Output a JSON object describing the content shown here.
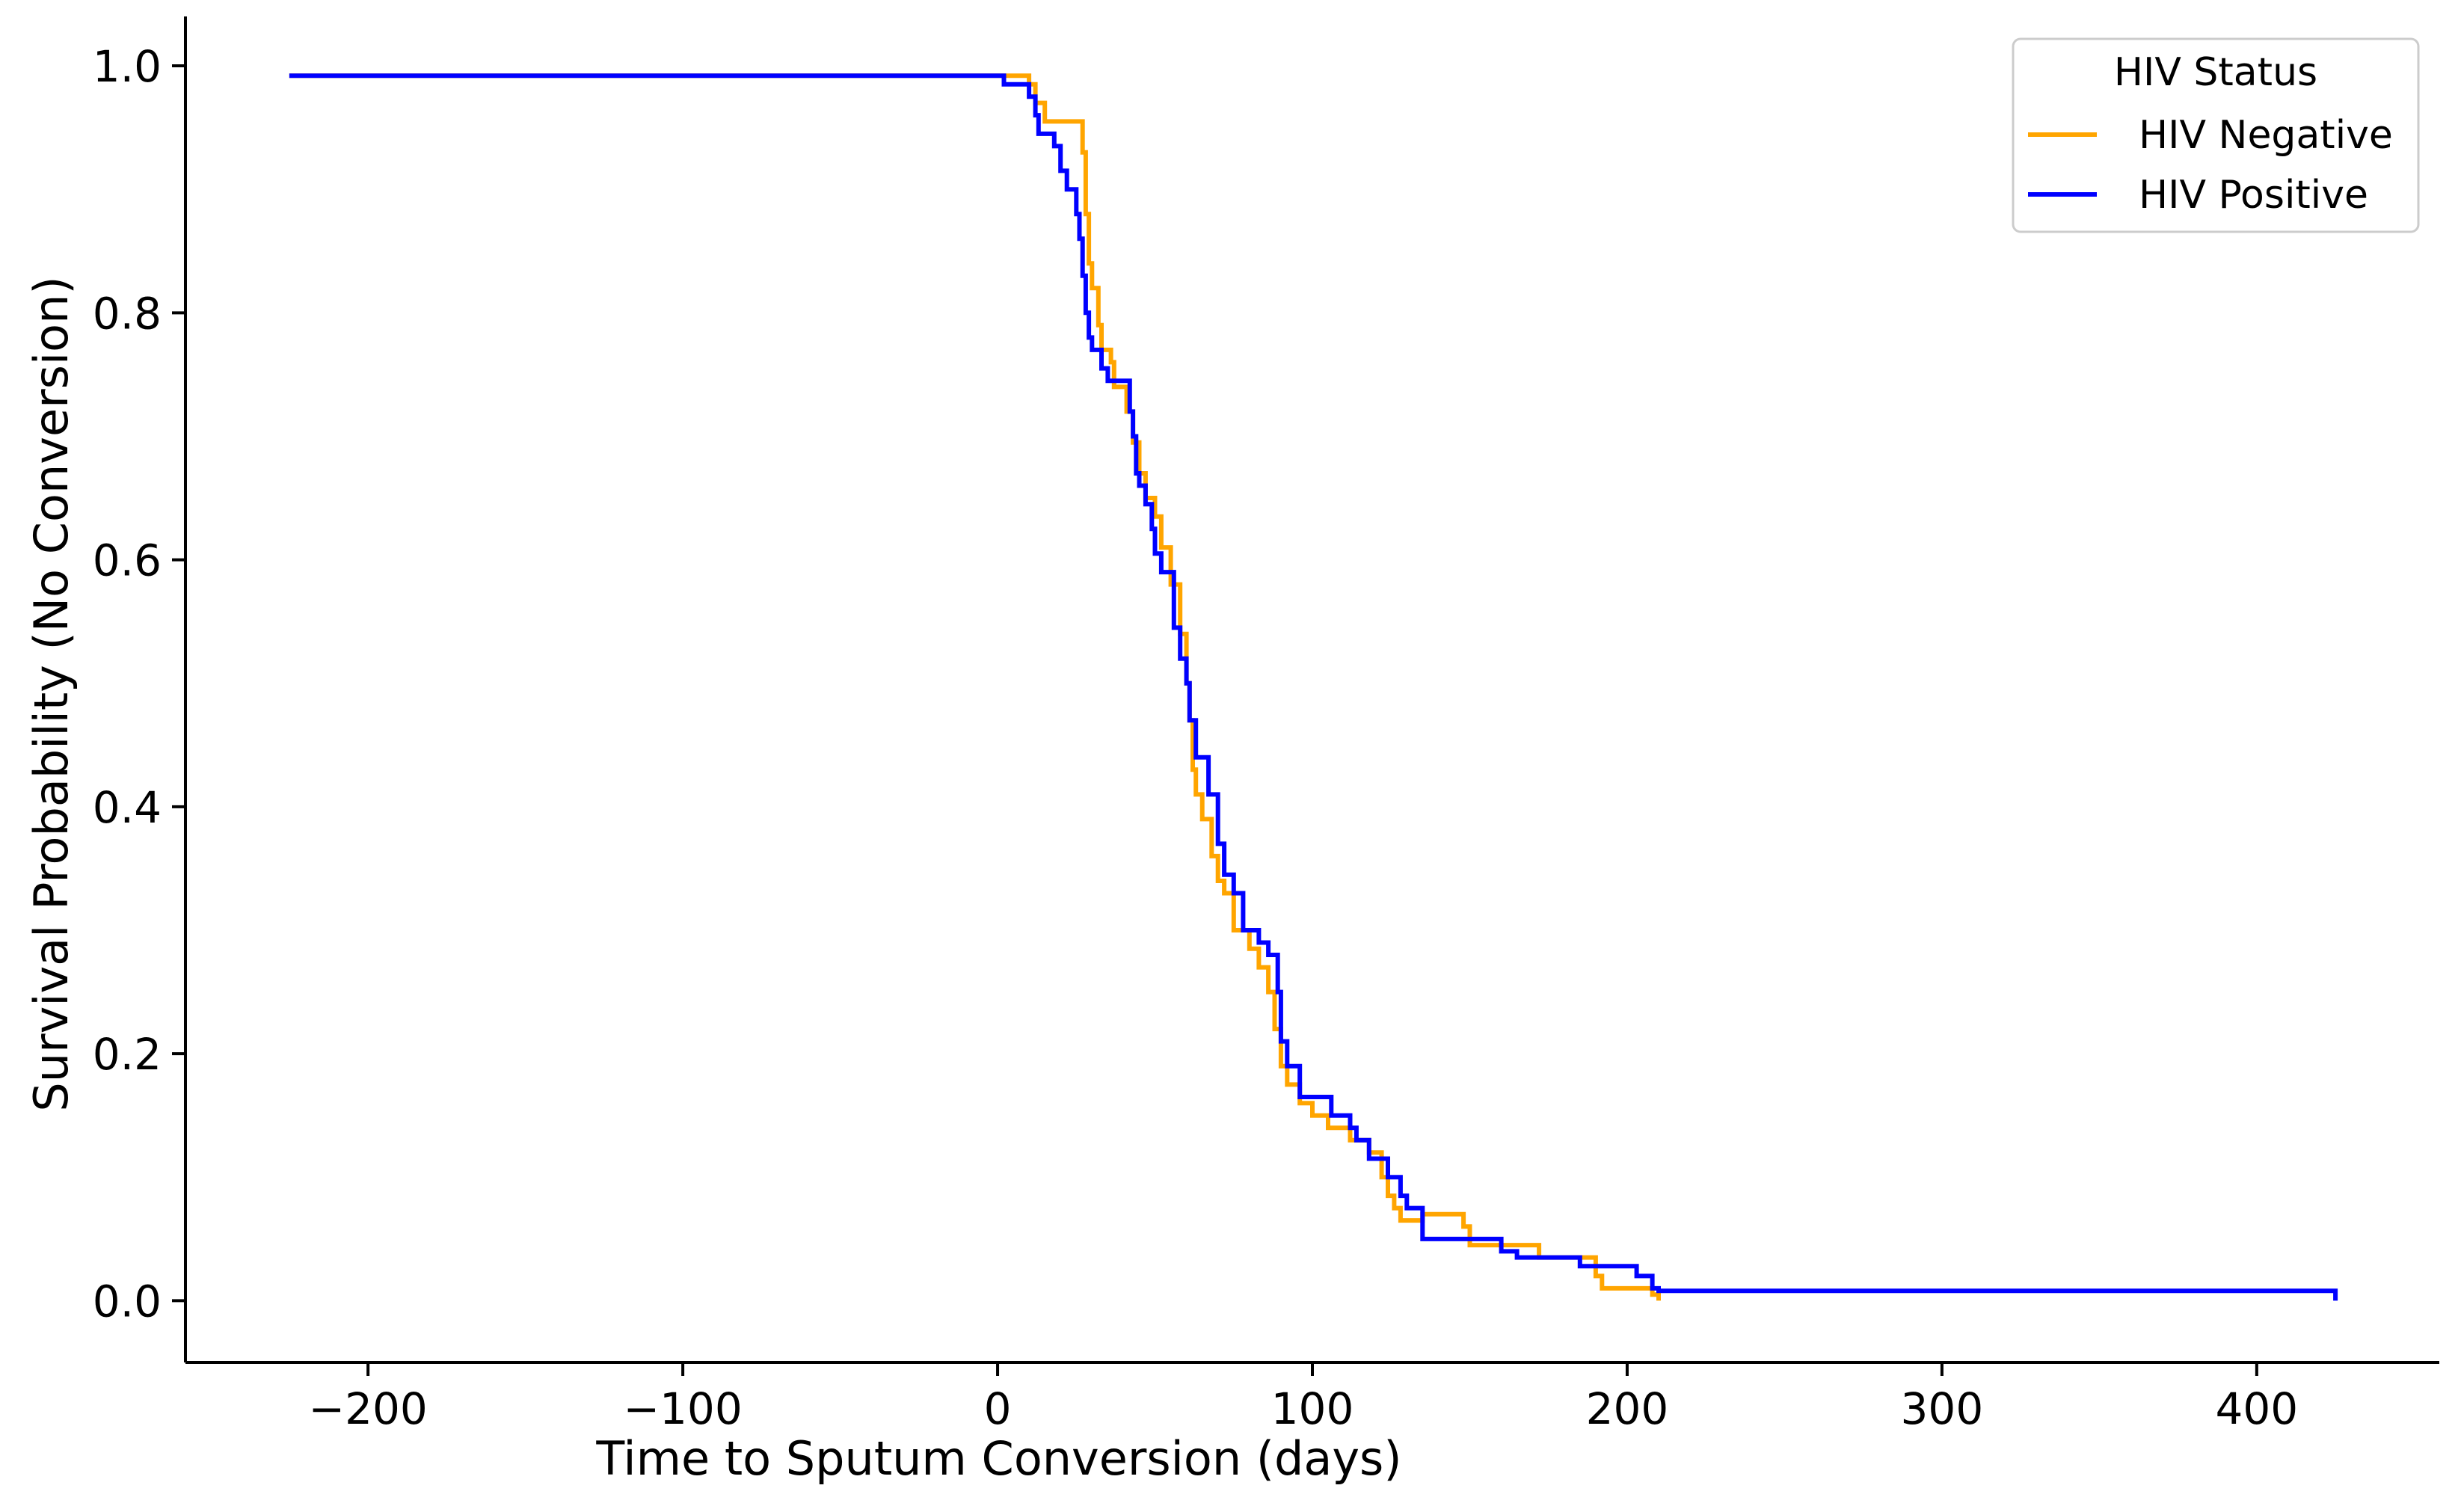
{
  "chart_data": {
    "type": "line",
    "step": true,
    "title": "",
    "xlabel": "Time to Sputum Conversion (days)",
    "ylabel": "Survival Probability (No Conversion)",
    "xlim": [
      -258,
      458
    ],
    "ylim": [
      -0.05,
      1.04
    ],
    "xticks": [
      -200,
      -100,
      0,
      100,
      200,
      300,
      400
    ],
    "xtick_labels": [
      "−200",
      "−100",
      "0",
      "100",
      "200",
      "300",
      "400"
    ],
    "yticks": [
      0.0,
      0.2,
      0.4,
      0.6,
      0.8,
      1.0
    ],
    "ytick_labels": [
      "0.0",
      "0.2",
      "0.4",
      "0.6",
      "0.8",
      "1.0"
    ],
    "grid": false,
    "legend": {
      "title": "HIV Status",
      "position": "top-right"
    },
    "series": [
      {
        "name": "HIV Negative",
        "color": "#FFA500",
        "points": [
          [
            -225,
            0.992
          ],
          [
            10,
            0.992
          ],
          [
            10,
            0.985
          ],
          [
            12,
            0.985
          ],
          [
            12,
            0.97
          ],
          [
            15,
            0.97
          ],
          [
            15,
            0.955
          ],
          [
            27,
            0.955
          ],
          [
            27,
            0.93
          ],
          [
            28,
            0.93
          ],
          [
            28,
            0.88
          ],
          [
            29,
            0.88
          ],
          [
            29,
            0.84
          ],
          [
            30,
            0.84
          ],
          [
            30,
            0.82
          ],
          [
            32,
            0.82
          ],
          [
            32,
            0.79
          ],
          [
            33,
            0.79
          ],
          [
            33,
            0.77
          ],
          [
            36,
            0.77
          ],
          [
            36,
            0.76
          ],
          [
            37,
            0.76
          ],
          [
            37,
            0.74
          ],
          [
            41,
            0.74
          ],
          [
            41,
            0.72
          ],
          [
            43,
            0.72
          ],
          [
            43,
            0.695
          ],
          [
            45,
            0.695
          ],
          [
            45,
            0.67
          ],
          [
            47,
            0.67
          ],
          [
            47,
            0.65
          ],
          [
            50,
            0.65
          ],
          [
            50,
            0.635
          ],
          [
            52,
            0.635
          ],
          [
            52,
            0.61
          ],
          [
            55,
            0.61
          ],
          [
            55,
            0.58
          ],
          [
            58,
            0.58
          ],
          [
            58,
            0.54
          ],
          [
            60,
            0.54
          ],
          [
            60,
            0.5
          ],
          [
            61,
            0.5
          ],
          [
            61,
            0.47
          ],
          [
            62,
            0.47
          ],
          [
            62,
            0.43
          ],
          [
            63,
            0.43
          ],
          [
            63,
            0.41
          ],
          [
            65,
            0.41
          ],
          [
            65,
            0.39
          ],
          [
            68,
            0.39
          ],
          [
            68,
            0.36
          ],
          [
            70,
            0.36
          ],
          [
            70,
            0.34
          ],
          [
            72,
            0.34
          ],
          [
            72,
            0.33
          ],
          [
            75,
            0.33
          ],
          [
            75,
            0.3
          ],
          [
            80,
            0.3
          ],
          [
            80,
            0.285
          ],
          [
            83,
            0.285
          ],
          [
            83,
            0.27
          ],
          [
            86,
            0.27
          ],
          [
            86,
            0.25
          ],
          [
            88,
            0.25
          ],
          [
            88,
            0.22
          ],
          [
            90,
            0.22
          ],
          [
            90,
            0.19
          ],
          [
            92,
            0.19
          ],
          [
            92,
            0.175
          ],
          [
            96,
            0.175
          ],
          [
            96,
            0.16
          ],
          [
            100,
            0.16
          ],
          [
            100,
            0.15
          ],
          [
            105,
            0.15
          ],
          [
            105,
            0.14
          ],
          [
            112,
            0.14
          ],
          [
            112,
            0.13
          ],
          [
            118,
            0.13
          ],
          [
            118,
            0.12
          ],
          [
            122,
            0.12
          ],
          [
            122,
            0.1
          ],
          [
            124,
            0.1
          ],
          [
            124,
            0.085
          ],
          [
            126,
            0.085
          ],
          [
            126,
            0.075
          ],
          [
            128,
            0.075
          ],
          [
            128,
            0.065
          ],
          [
            135,
            0.065
          ],
          [
            135,
            0.07
          ],
          [
            148,
            0.07
          ],
          [
            148,
            0.06
          ],
          [
            150,
            0.06
          ],
          [
            150,
            0.045
          ],
          [
            172,
            0.045
          ],
          [
            172,
            0.035
          ],
          [
            190,
            0.035
          ],
          [
            190,
            0.02
          ],
          [
            192,
            0.02
          ],
          [
            192,
            0.01
          ],
          [
            208,
            0.01
          ],
          [
            208,
            0.005
          ],
          [
            210,
            0.005
          ],
          [
            210,
            0.0
          ]
        ]
      },
      {
        "name": "HIV Positive",
        "color": "#0000FF",
        "points": [
          [
            -225,
            0.992
          ],
          [
            2,
            0.992
          ],
          [
            2,
            0.985
          ],
          [
            10,
            0.985
          ],
          [
            10,
            0.975
          ],
          [
            12,
            0.975
          ],
          [
            12,
            0.96
          ],
          [
            13,
            0.96
          ],
          [
            13,
            0.945
          ],
          [
            18,
            0.945
          ],
          [
            18,
            0.935
          ],
          [
            20,
            0.935
          ],
          [
            20,
            0.915
          ],
          [
            22,
            0.915
          ],
          [
            22,
            0.9
          ],
          [
            25,
            0.9
          ],
          [
            25,
            0.88
          ],
          [
            26,
            0.88
          ],
          [
            26,
            0.86
          ],
          [
            27,
            0.86
          ],
          [
            27,
            0.83
          ],
          [
            28,
            0.83
          ],
          [
            28,
            0.8
          ],
          [
            29,
            0.8
          ],
          [
            29,
            0.78
          ],
          [
            30,
            0.78
          ],
          [
            30,
            0.77
          ],
          [
            33,
            0.77
          ],
          [
            33,
            0.755
          ],
          [
            35,
            0.755
          ],
          [
            35,
            0.745
          ],
          [
            42,
            0.745
          ],
          [
            42,
            0.72
          ],
          [
            43,
            0.72
          ],
          [
            43,
            0.7
          ],
          [
            44,
            0.7
          ],
          [
            44,
            0.67
          ],
          [
            45,
            0.67
          ],
          [
            45,
            0.66
          ],
          [
            47,
            0.66
          ],
          [
            47,
            0.645
          ],
          [
            49,
            0.645
          ],
          [
            49,
            0.625
          ],
          [
            50,
            0.625
          ],
          [
            50,
            0.605
          ],
          [
            52,
            0.605
          ],
          [
            52,
            0.59
          ],
          [
            56,
            0.59
          ],
          [
            56,
            0.545
          ],
          [
            58,
            0.545
          ],
          [
            58,
            0.52
          ],
          [
            60,
            0.52
          ],
          [
            60,
            0.5
          ],
          [
            61,
            0.5
          ],
          [
            61,
            0.47
          ],
          [
            63,
            0.47
          ],
          [
            63,
            0.44
          ],
          [
            67,
            0.44
          ],
          [
            67,
            0.41
          ],
          [
            70,
            0.41
          ],
          [
            70,
            0.37
          ],
          [
            72,
            0.37
          ],
          [
            72,
            0.345
          ],
          [
            75,
            0.345
          ],
          [
            75,
            0.33
          ],
          [
            78,
            0.33
          ],
          [
            78,
            0.3
          ],
          [
            83,
            0.3
          ],
          [
            83,
            0.29
          ],
          [
            86,
            0.29
          ],
          [
            86,
            0.28
          ],
          [
            89,
            0.28
          ],
          [
            89,
            0.25
          ],
          [
            90,
            0.25
          ],
          [
            90,
            0.21
          ],
          [
            92,
            0.21
          ],
          [
            92,
            0.19
          ],
          [
            96,
            0.19
          ],
          [
            96,
            0.165
          ],
          [
            106,
            0.165
          ],
          [
            106,
            0.15
          ],
          [
            112,
            0.15
          ],
          [
            112,
            0.14
          ],
          [
            114,
            0.14
          ],
          [
            114,
            0.13
          ],
          [
            118,
            0.13
          ],
          [
            118,
            0.115
          ],
          [
            124,
            0.115
          ],
          [
            124,
            0.1
          ],
          [
            128,
            0.1
          ],
          [
            128,
            0.085
          ],
          [
            130,
            0.085
          ],
          [
            130,
            0.075
          ],
          [
            135,
            0.075
          ],
          [
            135,
            0.05
          ],
          [
            160,
            0.05
          ],
          [
            160,
            0.04
          ],
          [
            165,
            0.04
          ],
          [
            165,
            0.035
          ],
          [
            185,
            0.035
          ],
          [
            185,
            0.028
          ],
          [
            203,
            0.028
          ],
          [
            203,
            0.02
          ],
          [
            208,
            0.02
          ],
          [
            208,
            0.01
          ],
          [
            210,
            0.01
          ],
          [
            210,
            0.008
          ],
          [
            425,
            0.008
          ],
          [
            425,
            0.0
          ]
        ]
      }
    ]
  }
}
